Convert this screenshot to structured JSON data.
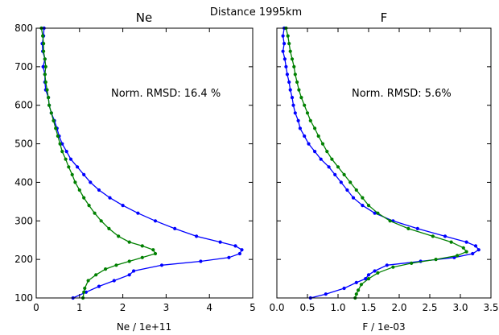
{
  "figure": {
    "suptitle": "Distance 1995km"
  },
  "colors": {
    "blue": "#0000ff",
    "green": "#008000"
  },
  "chart_data": [
    {
      "type": "line",
      "title": "Ne",
      "xlabel": "Ne / 1e+11",
      "ylabel": "",
      "xlim": [
        0,
        5
      ],
      "ylim": [
        100,
        800
      ],
      "xticks": [
        "0",
        "1",
        "2",
        "3",
        "4",
        "5"
      ],
      "yticks": [
        "100",
        "200",
        "300",
        "400",
        "500",
        "600",
        "700",
        "800"
      ],
      "annotation": "Norm. RMSD: 16.4 %",
      "grid": false,
      "series": [
        {
          "color": "blue",
          "style": "points with line",
          "points": [
            [
              0.18,
              800
            ],
            [
              0.17,
              780
            ],
            [
              0.14,
              760
            ],
            [
              0.15,
              740
            ],
            [
              0.2,
              720
            ],
            [
              0.16,
              700
            ],
            [
              0.2,
              680
            ],
            [
              0.2,
              660
            ],
            [
              0.22,
              640
            ],
            [
              0.28,
              620
            ],
            [
              0.3,
              600
            ],
            [
              0.35,
              580
            ],
            [
              0.42,
              560
            ],
            [
              0.48,
              540
            ],
            [
              0.53,
              520
            ],
            [
              0.6,
              500
            ],
            [
              0.7,
              480
            ],
            [
              0.8,
              460
            ],
            [
              0.95,
              440
            ],
            [
              1.1,
              420
            ],
            [
              1.25,
              400
            ],
            [
              1.45,
              380
            ],
            [
              1.7,
              360
            ],
            [
              2.0,
              340
            ],
            [
              2.35,
              320
            ],
            [
              2.75,
              300
            ],
            [
              3.2,
              280
            ],
            [
              3.7,
              260
            ],
            [
              4.25,
              245
            ],
            [
              4.6,
              235
            ],
            [
              4.75,
              225
            ],
            [
              4.7,
              215
            ],
            [
              4.45,
              205
            ],
            [
              3.8,
              195
            ],
            [
              2.9,
              185
            ],
            [
              2.25,
              170
            ],
            [
              2.15,
              160
            ],
            [
              1.8,
              145
            ],
            [
              1.45,
              130
            ],
            [
              1.15,
              115
            ],
            [
              0.85,
              100
            ]
          ]
        },
        {
          "color": "green",
          "style": "points with line",
          "points": [
            [
              0.12,
              800
            ],
            [
              0.15,
              780
            ],
            [
              0.17,
              760
            ],
            [
              0.17,
              740
            ],
            [
              0.2,
              720
            ],
            [
              0.22,
              700
            ],
            [
              0.2,
              680
            ],
            [
              0.22,
              660
            ],
            [
              0.25,
              640
            ],
            [
              0.28,
              620
            ],
            [
              0.3,
              600
            ],
            [
              0.35,
              580
            ],
            [
              0.4,
              560
            ],
            [
              0.45,
              540
            ],
            [
              0.5,
              520
            ],
            [
              0.55,
              500
            ],
            [
              0.6,
              480
            ],
            [
              0.68,
              460
            ],
            [
              0.75,
              440
            ],
            [
              0.83,
              420
            ],
            [
              0.9,
              400
            ],
            [
              1.0,
              380
            ],
            [
              1.1,
              360
            ],
            [
              1.22,
              340
            ],
            [
              1.35,
              320
            ],
            [
              1.5,
              300
            ],
            [
              1.68,
              280
            ],
            [
              1.9,
              260
            ],
            [
              2.15,
              245
            ],
            [
              2.45,
              235
            ],
            [
              2.7,
              225
            ],
            [
              2.75,
              215
            ],
            [
              2.45,
              205
            ],
            [
              2.15,
              195
            ],
            [
              1.85,
              185
            ],
            [
              1.6,
              175
            ],
            [
              1.38,
              160
            ],
            [
              1.2,
              145
            ],
            [
              1.12,
              125
            ],
            [
              1.1,
              115
            ],
            [
              1.08,
              100
            ]
          ]
        }
      ]
    },
    {
      "type": "line",
      "title": "F",
      "xlabel": "F / 1e-03",
      "ylabel": "",
      "xlim": [
        0,
        3.5
      ],
      "ylim": [
        100,
        800
      ],
      "xticks": [
        "0.0",
        "0.5",
        "1.0",
        "1.5",
        "2.0",
        "2.5",
        "3.0",
        "3.5"
      ],
      "yticks": [],
      "annotation": "Norm. RMSD: 5.6%",
      "grid": false,
      "series": [
        {
          "color": "blue",
          "style": "points with line",
          "points": [
            [
              0.12,
              800
            ],
            [
              0.1,
              780
            ],
            [
              0.12,
              760
            ],
            [
              0.1,
              740
            ],
            [
              0.13,
              720
            ],
            [
              0.15,
              700
            ],
            [
              0.17,
              680
            ],
            [
              0.2,
              660
            ],
            [
              0.22,
              640
            ],
            [
              0.25,
              620
            ],
            [
              0.27,
              600
            ],
            [
              0.3,
              580
            ],
            [
              0.35,
              560
            ],
            [
              0.38,
              540
            ],
            [
              0.45,
              520
            ],
            [
              0.52,
              500
            ],
            [
              0.62,
              480
            ],
            [
              0.72,
              460
            ],
            [
              0.85,
              440
            ],
            [
              0.95,
              420
            ],
            [
              1.05,
              400
            ],
            [
              1.15,
              380
            ],
            [
              1.25,
              360
            ],
            [
              1.4,
              340
            ],
            [
              1.6,
              320
            ],
            [
              1.9,
              300
            ],
            [
              2.3,
              280
            ],
            [
              2.75,
              260
            ],
            [
              3.1,
              245
            ],
            [
              3.25,
              235
            ],
            [
              3.3,
              225
            ],
            [
              3.2,
              215
            ],
            [
              2.9,
              205
            ],
            [
              2.35,
              195
            ],
            [
              1.8,
              185
            ],
            [
              1.6,
              170
            ],
            [
              1.5,
              160
            ],
            [
              1.45,
              150
            ],
            [
              1.3,
              140
            ],
            [
              1.1,
              125
            ],
            [
              0.8,
              110
            ],
            [
              0.55,
              100
            ]
          ]
        },
        {
          "color": "green",
          "style": "points with line",
          "points": [
            [
              0.15,
              800
            ],
            [
              0.18,
              780
            ],
            [
              0.2,
              760
            ],
            [
              0.22,
              740
            ],
            [
              0.25,
              720
            ],
            [
              0.28,
              700
            ],
            [
              0.3,
              680
            ],
            [
              0.33,
              660
            ],
            [
              0.36,
              640
            ],
            [
              0.4,
              620
            ],
            [
              0.45,
              600
            ],
            [
              0.5,
              580
            ],
            [
              0.55,
              560
            ],
            [
              0.62,
              540
            ],
            [
              0.68,
              520
            ],
            [
              0.75,
              500
            ],
            [
              0.82,
              480
            ],
            [
              0.9,
              460
            ],
            [
              1.0,
              440
            ],
            [
              1.1,
              420
            ],
            [
              1.2,
              400
            ],
            [
              1.3,
              380
            ],
            [
              1.4,
              360
            ],
            [
              1.5,
              340
            ],
            [
              1.65,
              320
            ],
            [
              1.85,
              300
            ],
            [
              2.15,
              280
            ],
            [
              2.55,
              260
            ],
            [
              2.85,
              245
            ],
            [
              3.05,
              230
            ],
            [
              3.1,
              220
            ],
            [
              2.95,
              210
            ],
            [
              2.6,
              200
            ],
            [
              2.2,
              190
            ],
            [
              1.9,
              180
            ],
            [
              1.65,
              165
            ],
            [
              1.5,
              150
            ],
            [
              1.38,
              135
            ],
            [
              1.33,
              120
            ],
            [
              1.3,
              110
            ],
            [
              1.28,
              100
            ]
          ]
        }
      ]
    }
  ]
}
